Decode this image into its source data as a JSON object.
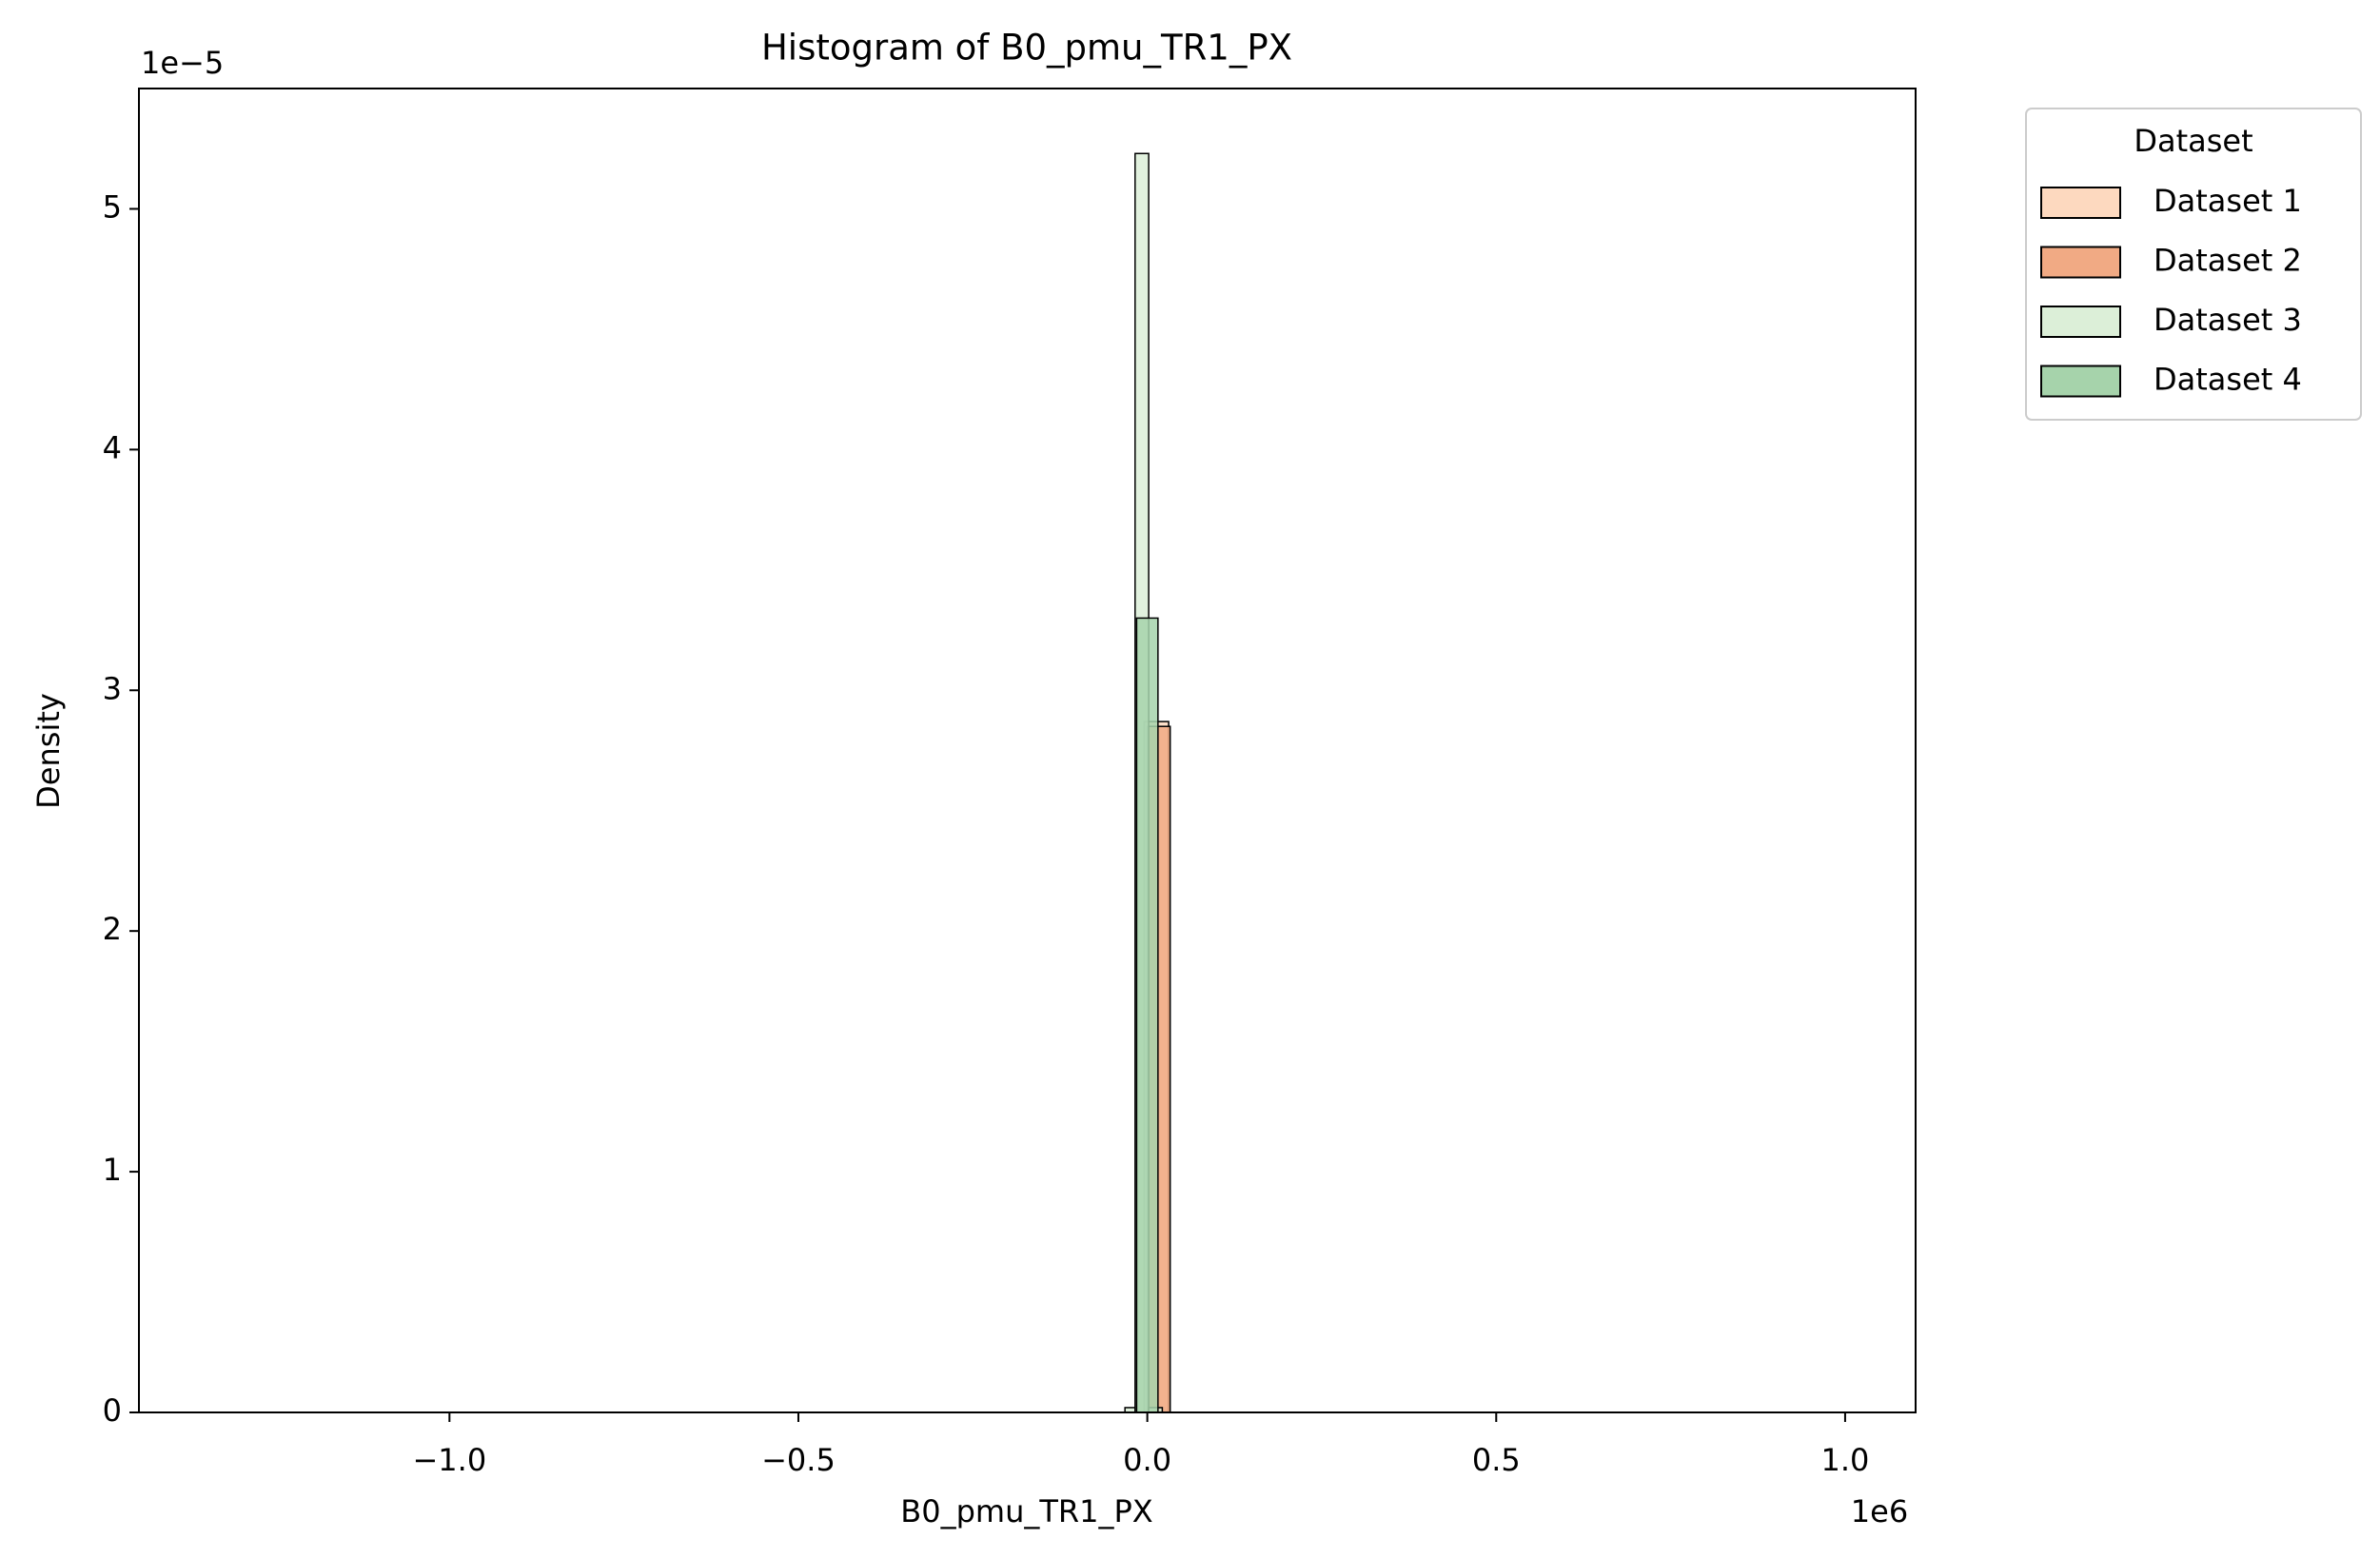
{
  "chart_data": {
    "type": "histogram",
    "title": "Histogram of B0_pmu_TR1_PX",
    "x_label": "B0_pmu_TR1_PX",
    "y_label": "Density",
    "x_offset_label": "1e6",
    "y_offset_label": "1e−5",
    "xlim": [
      -1.445,
      1.101
    ],
    "ylim": [
      0,
      5.5
    ],
    "xticks": [
      {
        "value": -1,
        "label": "−1.0"
      },
      {
        "value": -0.5,
        "label": "−0.5"
      },
      {
        "value": 0,
        "label": "0.0"
      },
      {
        "value": 0.5,
        "label": "0.5"
      },
      {
        "value": 1,
        "label": "1.0"
      }
    ],
    "yticks": [
      0,
      1,
      2,
      3,
      4,
      5
    ],
    "legend_title": "Dataset",
    "legend_position": "outside-upper-right",
    "series": [
      {
        "name": "Dataset 1",
        "color": "#fdd9bf",
        "bins": [
          -0.0044,
          0.0306
        ],
        "values": [
          2.87
        ]
      },
      {
        "name": "Dataset 2",
        "color": "#f1aa84",
        "bins": [
          0.0,
          0.0328
        ],
        "values": [
          2.85
        ]
      },
      {
        "name": "Dataset 3",
        "color": "#dcefd8",
        "bins": [
          -0.032,
          -0.0175,
          0.002,
          0.0215
        ],
        "values": [
          0.02,
          5.23,
          0.02
        ]
      },
      {
        "name": "Dataset 4",
        "color": "#a6d3ab",
        "bins": [
          -0.0153,
          0.0153
        ],
        "values": [
          3.3
        ]
      }
    ]
  }
}
